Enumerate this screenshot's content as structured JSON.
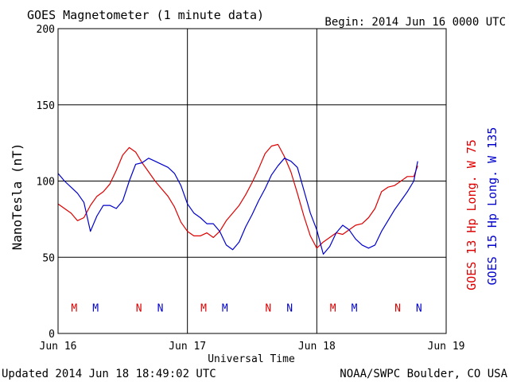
{
  "header": {
    "title": "GOES Magnetometer (1 minute data)",
    "begin": "Begin:  2014 Jun 16 0000 UTC"
  },
  "footer": {
    "updated": "Updated 2014 Jun 18 18:49:02 UTC",
    "source": "NOAA/SWPC Boulder, CO USA"
  },
  "colors": {
    "goes13": "#dd0000",
    "goes15": "#0000cc",
    "axis": "#000000",
    "background": "#ffffff"
  },
  "chart_data": {
    "type": "line",
    "xlabel": "Universal Time",
    "ylabel": "NanoTesla (nT)",
    "xlim": [
      0,
      3
    ],
    "ylim": [
      0,
      200
    ],
    "grid": true,
    "x_ticks": [
      {
        "value": 0,
        "label": "Jun 16"
      },
      {
        "value": 1,
        "label": "Jun 17"
      },
      {
        "value": 2,
        "label": "Jun 18"
      },
      {
        "value": 3,
        "label": "Jun 19"
      }
    ],
    "y_ticks": [
      {
        "value": 0,
        "label": "0"
      },
      {
        "value": 50,
        "label": "50"
      },
      {
        "value": 100,
        "label": "100"
      },
      {
        "value": 150,
        "label": "150"
      },
      {
        "value": 200,
        "label": "200"
      }
    ],
    "x_unit": "days since 2014 Jun 16 0000 UTC",
    "series": [
      {
        "name": "GOES 13 Hp  Long. W 75",
        "color": "#dd0000",
        "x": [
          0,
          0.05,
          0.1,
          0.15,
          0.2,
          0.25,
          0.3,
          0.35,
          0.4,
          0.45,
          0.5,
          0.55,
          0.6,
          0.65,
          0.7,
          0.75,
          0.8,
          0.85,
          0.9,
          0.95,
          1.0,
          1.05,
          1.1,
          1.15,
          1.2,
          1.25,
          1.3,
          1.35,
          1.4,
          1.45,
          1.5,
          1.55,
          1.6,
          1.65,
          1.7,
          1.75,
          1.8,
          1.85,
          1.9,
          1.95,
          2.0,
          2.05,
          2.1,
          2.15,
          2.2,
          2.25,
          2.3,
          2.35,
          2.4,
          2.45,
          2.5,
          2.55,
          2.6,
          2.65,
          2.7,
          2.75,
          2.78
        ],
        "y": [
          85,
          82,
          79,
          74,
          76,
          84,
          90,
          93,
          98,
          107,
          117,
          122,
          119,
          112,
          106,
          100,
          95,
          90,
          83,
          73,
          67,
          64,
          64,
          66,
          63,
          67,
          74,
          79,
          84,
          91,
          99,
          108,
          118,
          123,
          124,
          116,
          106,
          92,
          77,
          64,
          56,
          60,
          63,
          66,
          65,
          68,
          71,
          72,
          76,
          82,
          93,
          96,
          97,
          100,
          103,
          103,
          110
        ]
      },
      {
        "name": "GOES 15 Hp  Long. W 135",
        "color": "#0000cc",
        "x": [
          0,
          0.05,
          0.1,
          0.15,
          0.2,
          0.25,
          0.3,
          0.35,
          0.4,
          0.45,
          0.5,
          0.55,
          0.6,
          0.65,
          0.7,
          0.75,
          0.8,
          0.85,
          0.9,
          0.95,
          1.0,
          1.05,
          1.1,
          1.15,
          1.2,
          1.25,
          1.3,
          1.35,
          1.4,
          1.45,
          1.5,
          1.55,
          1.6,
          1.65,
          1.7,
          1.75,
          1.8,
          1.85,
          1.9,
          1.95,
          2.0,
          2.05,
          2.1,
          2.15,
          2.2,
          2.25,
          2.3,
          2.35,
          2.4,
          2.45,
          2.5,
          2.55,
          2.6,
          2.65,
          2.7,
          2.75,
          2.78
        ],
        "y": [
          105,
          100,
          96,
          92,
          86,
          67,
          77,
          84,
          84,
          82,
          87,
          100,
          111,
          112,
          115,
          113,
          111,
          109,
          105,
          97,
          85,
          79,
          76,
          72,
          72,
          67,
          58,
          55,
          60,
          70,
          78,
          87,
          95,
          104,
          110,
          115,
          113,
          109,
          94,
          79,
          68,
          52,
          57,
          66,
          71,
          68,
          62,
          58,
          56,
          58,
          67,
          74,
          81,
          87,
          93,
          100,
          113
        ]
      }
    ],
    "markers": [
      {
        "x": 0.125,
        "label": "M",
        "series": "GOES 13 Hp  Long. W 75"
      },
      {
        "x": 0.29,
        "label": "M",
        "series": "GOES 15 Hp  Long. W 135"
      },
      {
        "x": 0.625,
        "label": "N",
        "series": "GOES 13 Hp  Long. W 75"
      },
      {
        "x": 0.79,
        "label": "N",
        "series": "GOES 15 Hp  Long. W 135"
      },
      {
        "x": 1.125,
        "label": "M",
        "series": "GOES 13 Hp  Long. W 75"
      },
      {
        "x": 1.29,
        "label": "M",
        "series": "GOES 15 Hp  Long. W 135"
      },
      {
        "x": 1.625,
        "label": "N",
        "series": "GOES 13 Hp  Long. W 75"
      },
      {
        "x": 1.79,
        "label": "N",
        "series": "GOES 15 Hp  Long. W 135"
      },
      {
        "x": 2.125,
        "label": "M",
        "series": "GOES 13 Hp  Long. W 75"
      },
      {
        "x": 2.29,
        "label": "M",
        "series": "GOES 15 Hp  Long. W 135"
      },
      {
        "x": 2.625,
        "label": "N",
        "series": "GOES 13 Hp  Long. W 75"
      },
      {
        "x": 2.79,
        "label": "N",
        "series": "GOES 15 Hp  Long. W 135"
      }
    ],
    "marker_level": 17
  }
}
